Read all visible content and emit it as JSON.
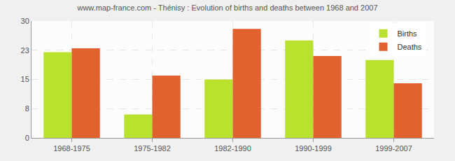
{
  "chart_data": {
    "type": "bar",
    "title": "www.map-france.com - Thénisy : Evolution of births and deaths between 1968 and 2007",
    "categories": [
      "1968-1975",
      "1975-1982",
      "1982-1990",
      "1990-1999",
      "1999-2007"
    ],
    "series": [
      {
        "name": "Births",
        "color": "#b9e22f",
        "values": [
          22,
          6,
          15,
          25,
          20
        ]
      },
      {
        "name": "Deaths",
        "color": "#e1622f",
        "values": [
          23,
          16,
          28,
          21,
          14
        ]
      }
    ],
    "ylim": [
      0,
      30
    ],
    "yticks": [
      0,
      {
        "value": 7.5,
        "label": "8"
      },
      15,
      {
        "value": 22.5,
        "label": "23"
      },
      30
    ],
    "grid": true,
    "legend": "upper right"
  }
}
